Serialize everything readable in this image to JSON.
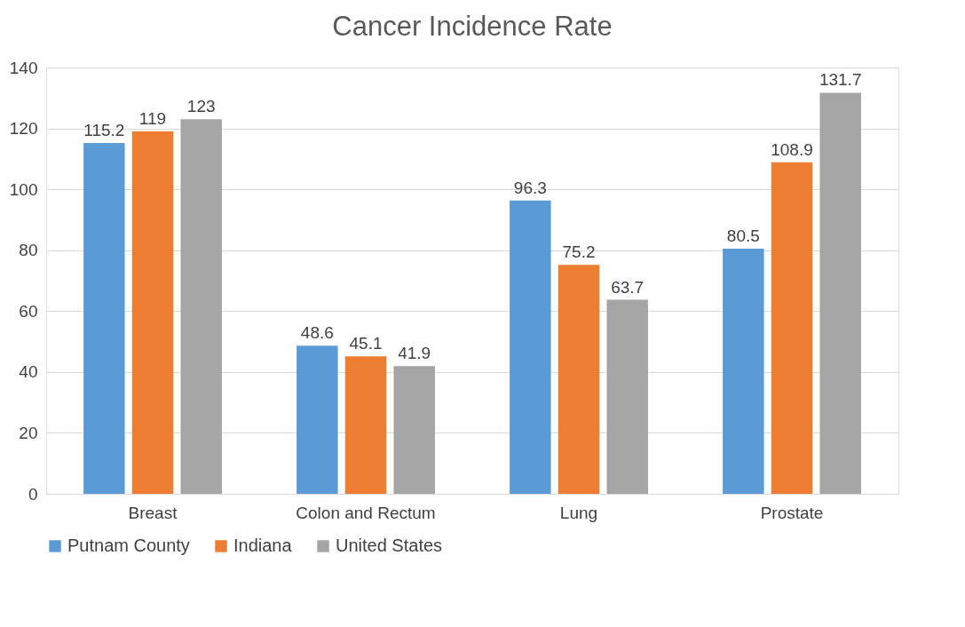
{
  "chart_data": {
    "type": "bar",
    "title": "Cancer Incidence Rate",
    "categories": [
      "Breast",
      "Colon and Rectum",
      "Lung",
      "Prostate"
    ],
    "series": [
      {
        "name": "Putnam County",
        "color": "#5b9bd5",
        "values": [
          115.2,
          48.6,
          96.3,
          80.5
        ]
      },
      {
        "name": "Indiana",
        "color": "#ed7d31",
        "values": [
          119,
          45.1,
          75.2,
          108.9
        ]
      },
      {
        "name": "United States",
        "color": "#a5a5a5",
        "values": [
          123,
          41.9,
          63.7,
          131.7
        ]
      }
    ],
    "ylim": [
      0,
      140
    ],
    "yticks": [
      0,
      20,
      40,
      60,
      80,
      100,
      120,
      140
    ],
    "grid": "y",
    "legend": "bottom",
    "data_labels": true
  }
}
